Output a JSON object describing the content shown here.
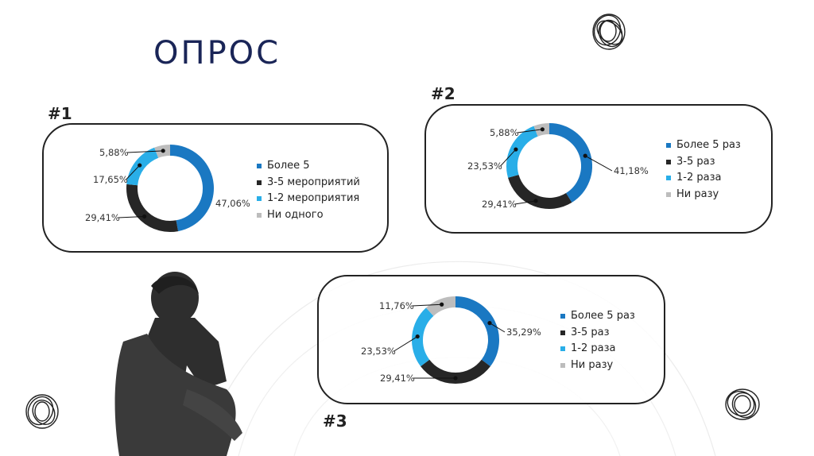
{
  "page": {
    "title": "ОПРОС"
  },
  "colors": {
    "blue": "#1a78c2",
    "dark": "#262626",
    "cyan": "#29aee8",
    "gray": "#bdbdbd",
    "title": "#1a2557"
  },
  "chart_data": [
    {
      "id": "survey-1",
      "label": "#1",
      "type": "pie",
      "style": "donut",
      "categories": [
        "Более 5",
        "3-5 мероприятий",
        "1-2 мероприятия",
        "Ни одного"
      ],
      "values": [
        47.06,
        29.41,
        17.65,
        5.88
      ],
      "value_labels": [
        "47,06%",
        "29,41%",
        "17,65%",
        "5,88%"
      ],
      "legend_position": "right"
    },
    {
      "id": "survey-2",
      "label": "#2",
      "type": "pie",
      "style": "donut",
      "categories": [
        "Более 5 раз",
        "3-5 раз",
        "1-2 раза",
        "Ни разу"
      ],
      "values": [
        41.18,
        29.41,
        23.53,
        5.88
      ],
      "value_labels": [
        "41,18%",
        "29,41%",
        "23,53%",
        "5,88%"
      ],
      "legend_position": "right"
    },
    {
      "id": "survey-3",
      "label": "#3",
      "type": "pie",
      "style": "donut",
      "categories": [
        "Более 5 раз",
        "3-5 раз",
        "1-2 раза",
        "Ни разу"
      ],
      "values": [
        35.29,
        29.41,
        23.53,
        11.76
      ],
      "value_labels": [
        "35,29%",
        "29,41%",
        "23,53%",
        "11,76%"
      ],
      "legend_position": "right"
    }
  ]
}
